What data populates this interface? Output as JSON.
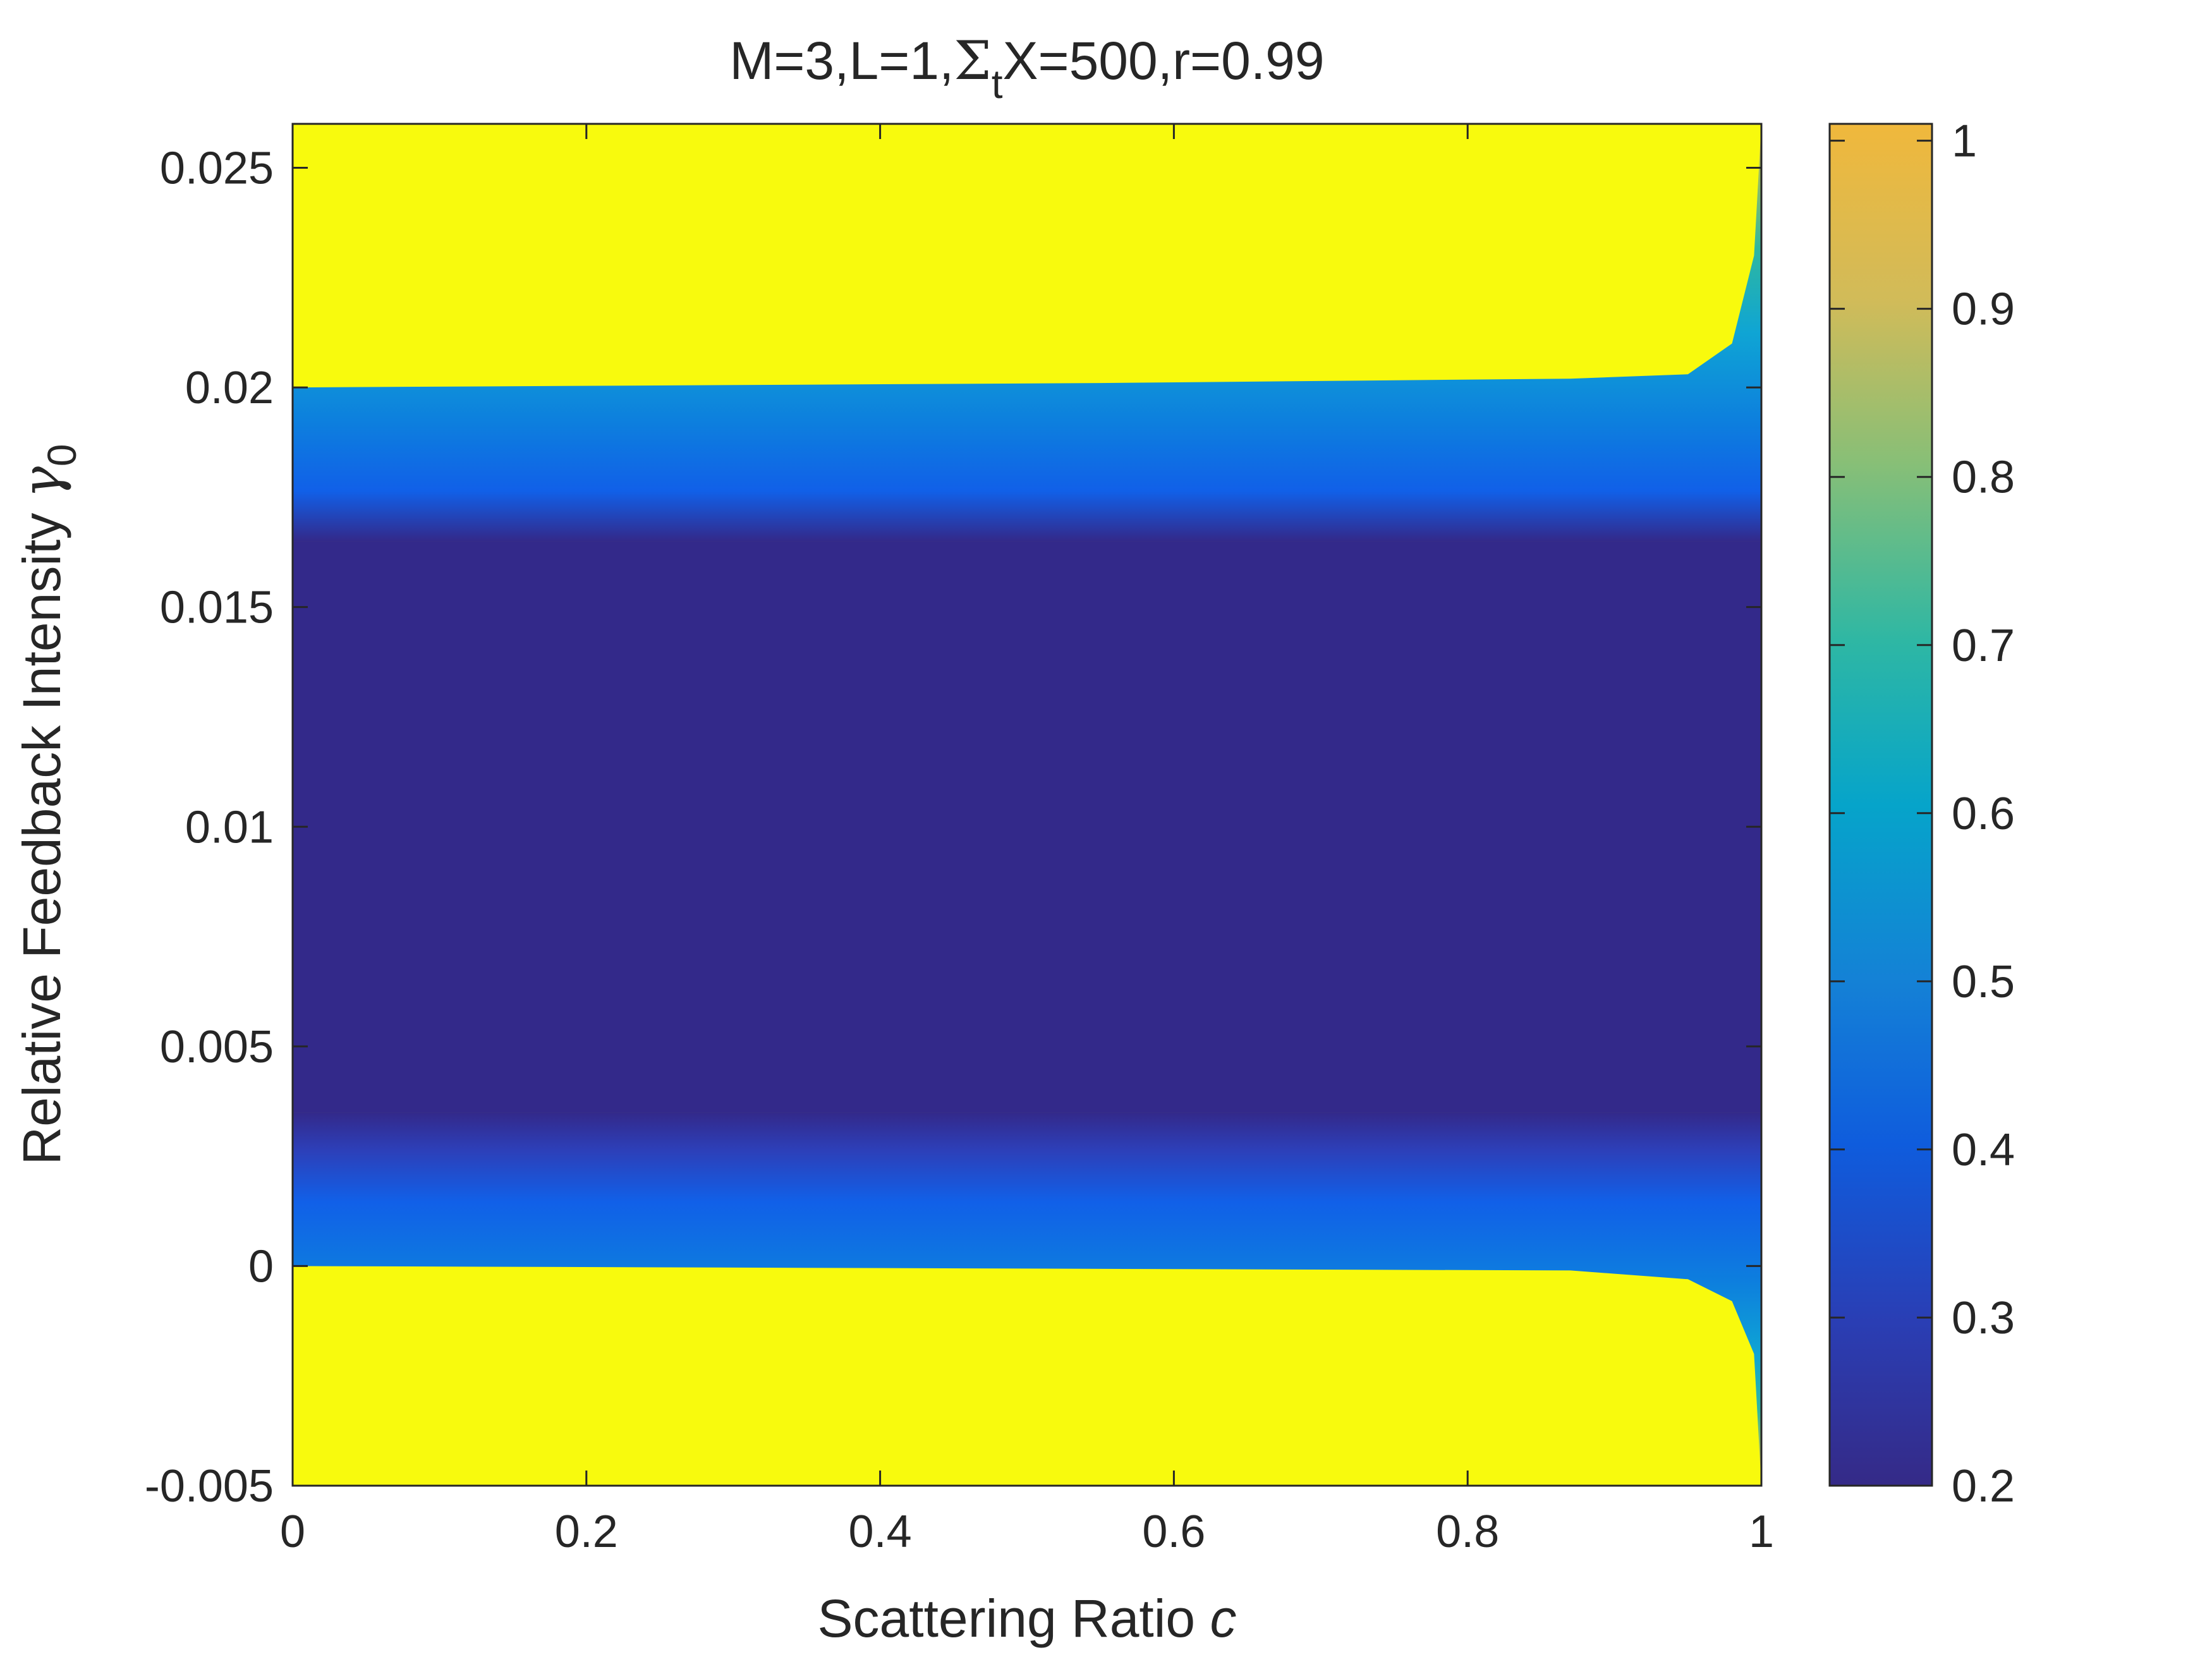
{
  "chart_data": {
    "type": "heatmap",
    "title_parts": [
      "M=3,L=1,",
      "Σ",
      "t",
      "X=500,r=0.99"
    ],
    "xlabel": "Scattering Ratio ",
    "xlabel_var": "c",
    "ylabel": "Relative Feedback Intensity ",
    "ylabel_var": "γ",
    "ylabel_sub": "0",
    "xlim": [
      0,
      1
    ],
    "ylim": [
      -0.005,
      0.026
    ],
    "x_ticks": [
      0,
      0.2,
      0.4,
      0.6,
      0.8,
      1
    ],
    "x_tick_labels": [
      "0",
      "0.2",
      "0.4",
      "0.6",
      "0.8",
      "1"
    ],
    "y_ticks": [
      -0.005,
      0,
      0.005,
      0.01,
      0.015,
      0.02,
      0.025
    ],
    "y_tick_labels": [
      "-0.005",
      "0",
      "0.005",
      "0.01",
      "0.015",
      "0.02",
      "0.025"
    ],
    "colorbar": {
      "range": [
        0.2,
        1.01
      ],
      "ticks": [
        0.2,
        0.3,
        0.4,
        0.5,
        0.6,
        0.7,
        0.8,
        0.9,
        1
      ],
      "tick_labels": [
        "0.2",
        "0.3",
        "0.4",
        "0.5",
        "0.6",
        "0.7",
        "0.8",
        "0.9",
        "1"
      ],
      "colormap": "parula"
    },
    "regions": [
      {
        "gamma_min": 0.02,
        "gamma_max": 0.026,
        "value": 1.0,
        "description": "saturated (yellow)"
      },
      {
        "gamma_min": 0.0165,
        "gamma_max": 0.02,
        "value_range": [
          0.3,
          1.0
        ],
        "description": "upper transition band"
      },
      {
        "gamma_min": 0.0035,
        "gamma_max": 0.0165,
        "value": 0.2,
        "description": "minimum plateau"
      },
      {
        "gamma_min": 0.0,
        "gamma_max": 0.0035,
        "value_range": [
          0.3,
          1.0
        ],
        "description": "lower transition band"
      },
      {
        "gamma_min": -0.005,
        "gamma_max": 0.0,
        "value": 1.0,
        "description": "saturated (yellow)"
      }
    ],
    "band_edges_near_c1": {
      "upper_band_top": [
        [
          0.0,
          0.02
        ],
        [
          0.55,
          0.0201
        ],
        [
          0.87,
          0.0202
        ],
        [
          0.95,
          0.0203
        ],
        [
          0.98,
          0.021
        ],
        [
          0.995,
          0.023
        ],
        [
          1.0,
          0.026
        ]
      ],
      "lower_band_bottom": [
        [
          0.0,
          0.0
        ],
        [
          0.87,
          -0.0001
        ],
        [
          0.95,
          -0.0003
        ],
        [
          0.98,
          -0.0008
        ],
        [
          0.995,
          -0.002
        ],
        [
          1.0,
          -0.005
        ]
      ]
    }
  }
}
